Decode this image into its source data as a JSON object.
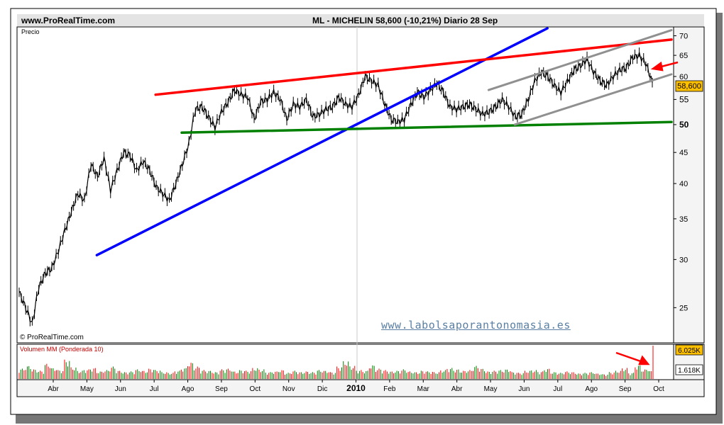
{
  "header": {
    "site": "www.ProRealTime.com",
    "title": "ML - MICHELIN     58,600 (-10,21%)   Diario  28 Sep"
  },
  "panel_labels": {
    "price_panel": "Precio",
    "copyright": "© ProRealTime.com",
    "volume_panel": "Volumen MM (Ponderada 10)",
    "watermark": "www.labolsaporantonomasia.es"
  },
  "badges": {
    "last_price": "58,600",
    "volume_high": "6.025K",
    "volume_avg": "1.618K"
  },
  "colors": {
    "price_line": "#000000",
    "resistance_line": "#ff0000",
    "support_line": "#008000",
    "uptrend_line": "#0000ff",
    "channel_lines": "#909090",
    "annotation_arrows": "#ff0000",
    "last_price_badge": "#ffc000",
    "volume_up": "#008000",
    "volume_down": "#ff0000"
  },
  "chart_data": [
    {
      "type": "line",
      "title": "ML - MICHELIN 58,600 (-10,21%) Diario 28 Sep",
      "ylabel": "Precio",
      "y_scale": "log",
      "ylim": [
        22,
        72
      ],
      "y_ticks": [
        25,
        30,
        35,
        40,
        45,
        50,
        55,
        60,
        65,
        70
      ],
      "x_ticks": [
        "Abr",
        "May",
        "Jun",
        "Jul",
        "Ago",
        "Sep",
        "Oct",
        "Nov",
        "Dic",
        "2010",
        "Feb",
        "Mar",
        "Abr",
        "May",
        "Jun",
        "Jul",
        "Ago",
        "Sep",
        "Oct"
      ],
      "grid": false,
      "last_value": 58.6,
      "series": [
        {
          "values": [
            26.5,
            25.0,
            23.5,
            27.0,
            28.5,
            29.0,
            31.0,
            33.5,
            36.0,
            38.5,
            37.5,
            43.0,
            41.0,
            44.0,
            39.0,
            42.0,
            45.0,
            44.5,
            42.0,
            43.5,
            42.0,
            39.5,
            38.5,
            37.5,
            40.0,
            43.0,
            46.5,
            53.0,
            53.5,
            51.5,
            49.5,
            52.5,
            54.5,
            57.0,
            56.0,
            55.5,
            51.0,
            54.5,
            55.0,
            56.5,
            55.0,
            51.0,
            54.0,
            53.5,
            55.0,
            51.5,
            52.0,
            53.0,
            53.5,
            55.5,
            54.0,
            53.5,
            56.0,
            60.0,
            59.0,
            58.0,
            54.0,
            51.0,
            50.5,
            51.0,
            54.0,
            56.5,
            55.5,
            57.0,
            58.5,
            56.5,
            53.5,
            53.0,
            53.5,
            54.0,
            53.0,
            52.0,
            52.5,
            53.5,
            55.0,
            53.5,
            51.5,
            52.0,
            55.0,
            59.0,
            61.0,
            60.0,
            58.0,
            56.5,
            59.0,
            61.5,
            62.5,
            64.0,
            61.0,
            59.0,
            58.0,
            60.0,
            61.5,
            62.0,
            64.5,
            65.0,
            63.0,
            58.6
          ]
        }
      ],
      "annotations": [
        {
          "label": "uptrend",
          "color": "blue",
          "from": [
            0.12,
            30.5
          ],
          "to": [
            0.81,
            72.0
          ]
        },
        {
          "label": "resistance",
          "color": "red",
          "from": [
            0.21,
            56.0
          ],
          "to": [
            1.0,
            69.0
          ]
        },
        {
          "label": "support",
          "color": "green",
          "from": [
            0.25,
            48.5
          ],
          "to": [
            1.0,
            50.5
          ]
        },
        {
          "label": "channel upper",
          "color": "gray",
          "from": [
            0.72,
            57.0
          ],
          "to": [
            1.0,
            71.5
          ]
        },
        {
          "label": "channel lower",
          "color": "gray",
          "from": [
            0.76,
            50.0
          ],
          "to": [
            1.0,
            60.5
          ]
        }
      ]
    },
    {
      "type": "bar",
      "title": "Volumen MM (Ponderada 10)",
      "ylim": [
        0,
        6.025
      ],
      "y_unit": "K",
      "last_value": 6.025,
      "average": 1.618,
      "values": [
        1.5,
        1.9,
        1.4,
        1.2,
        2.2,
        1.6,
        1.3,
        2.8,
        1.7,
        1.2,
        1.4,
        1.6,
        1.1,
        1.3,
        1.8,
        1.2,
        1.0,
        1.1,
        1.4,
        1.2,
        1.5,
        1.3,
        1.0,
        0.9,
        1.2,
        1.6,
        2.4,
        1.8,
        1.3,
        1.2,
        1.0,
        1.4,
        1.5,
        1.1,
        1.3,
        1.2,
        1.6,
        1.4,
        1.0,
        1.1,
        1.3,
        0.9,
        1.2,
        1.0,
        1.1,
        1.0,
        1.3,
        1.2,
        1.0,
        1.8,
        2.6,
        1.9,
        1.3,
        1.2,
        2.0,
        1.5,
        1.3,
        1.1,
        1.2,
        1.4,
        1.1,
        1.0,
        1.2,
        1.1,
        1.0,
        1.3,
        1.6,
        1.4,
        1.2,
        1.3,
        1.9,
        1.5,
        1.1,
        1.2,
        1.3,
        1.4,
        1.0,
        0.9,
        1.2,
        1.3,
        1.1,
        1.5,
        1.0,
        0.9,
        1.1,
        1.0,
        0.8,
        0.9,
        1.0,
        0.8,
        0.7,
        1.0,
        1.2,
        1.6,
        0.9,
        2.0,
        1.4,
        6.025
      ]
    }
  ]
}
